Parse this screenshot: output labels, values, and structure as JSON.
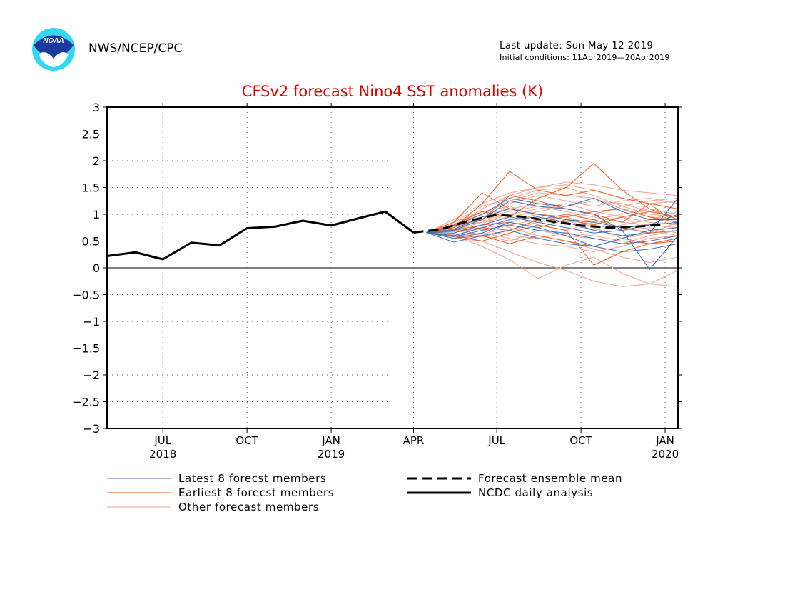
{
  "header": {
    "agency": "NWS/NCEP/CPC",
    "last_update": "Last update: Sun May 12 2019",
    "initial_conditions": "Initial conditions: 11Apr2019—20Apr2019",
    "logo_text": "NOAA"
  },
  "colors": {
    "title": "#e00000",
    "latest": "#3a6fb4",
    "earliest": "#f05a1e",
    "other": "#e8a692",
    "analysis": "#000000",
    "mean": "#000000"
  },
  "chart_data": {
    "type": "line",
    "title": "CFSv2 forecast Nino4 SST anomalies (K)",
    "xlabel": "",
    "ylabel": "",
    "ylim": [
      -3,
      3
    ],
    "xlim": [
      "2018-05-01",
      "2020-01-15"
    ],
    "yticks": [
      3,
      2.5,
      2,
      1.5,
      1,
      0.5,
      0,
      -0.5,
      -1,
      -1.5,
      -2,
      -2.5,
      -3
    ],
    "ytick_labels": [
      "3",
      "2.5",
      "2",
      "1.5",
      "1",
      "0.5",
      "0",
      "−0.5",
      "−1",
      "−1.5",
      "−2",
      "−2.5",
      "−3"
    ],
    "xticks": [
      {
        "date": "2018-07-01",
        "label": "JUL",
        "year": "2018"
      },
      {
        "date": "2018-10-01",
        "label": "OCT",
        "year": ""
      },
      {
        "date": "2019-01-01",
        "label": "JAN",
        "year": "2019"
      },
      {
        "date": "2019-04-01",
        "label": "APR",
        "year": ""
      },
      {
        "date": "2019-07-01",
        "label": "JUL",
        "year": ""
      },
      {
        "date": "2019-10-01",
        "label": "OCT",
        "year": ""
      },
      {
        "date": "2020-01-01",
        "label": "JAN",
        "year": "2020"
      }
    ],
    "grid": true,
    "zero_line": true,
    "legend": [
      {
        "label": "Latest 8 forecst members",
        "kind": "latest"
      },
      {
        "label": "Earliest 8 forecst members",
        "kind": "earliest"
      },
      {
        "label": "Other forecast members",
        "kind": "other"
      },
      {
        "label": "Forecast ensemble mean",
        "kind": "mean"
      },
      {
        "label": "NCDC daily analysis",
        "kind": "analysis"
      }
    ],
    "forecast_months": [
      "2019-04-15",
      "2019-05-15",
      "2019-06-15",
      "2019-07-15",
      "2019-08-15",
      "2019-09-15",
      "2019-10-15",
      "2019-11-15",
      "2019-12-15",
      "2020-01-15"
    ],
    "series": [
      {
        "name": "NCDC daily analysis",
        "kind": "analysis",
        "x": [
          "2018-05-01",
          "2018-06-01",
          "2018-07-01",
          "2018-08-01",
          "2018-09-01",
          "2018-10-01",
          "2018-11-01",
          "2018-12-01",
          "2019-01-01",
          "2019-02-01",
          "2019-03-01",
          "2019-04-01"
        ],
        "y": [
          0.22,
          0.29,
          0.16,
          0.47,
          0.42,
          0.74,
          0.77,
          0.88,
          0.79,
          0.93,
          1.05,
          0.66
        ]
      },
      {
        "name": "Forecast ensemble mean",
        "kind": "mean",
        "x": [
          "2019-04-01",
          "2019-05-01",
          "2019-06-01",
          "2019-07-01",
          "2019-08-01",
          "2019-09-01",
          "2019-10-01",
          "2019-11-01",
          "2019-12-01",
          "2020-01-01"
        ],
        "y": [
          0.66,
          0.72,
          0.88,
          0.99,
          0.95,
          0.86,
          0.79,
          0.75,
          0.77,
          0.81
        ]
      }
    ],
    "members": [
      {
        "kind": "other",
        "y": [
          0.66,
          0.78,
          1.1,
          1.35,
          1.5,
          1.55,
          1.45,
          1.3,
          1.2,
          1.25
        ]
      },
      {
        "kind": "other",
        "y": [
          0.66,
          0.9,
          1.2,
          1.4,
          1.5,
          1.6,
          1.55,
          1.45,
          1.4,
          1.35
        ]
      },
      {
        "kind": "other",
        "y": [
          0.66,
          0.6,
          0.4,
          0.15,
          -0.2,
          0.05,
          0.2,
          -0.1,
          -0.3,
          -0.35
        ]
      },
      {
        "kind": "other",
        "y": [
          0.66,
          0.55,
          0.5,
          0.3,
          0.1,
          -0.05,
          -0.25,
          -0.35,
          -0.3,
          -0.05
        ]
      },
      {
        "kind": "other",
        "y": [
          0.66,
          0.7,
          0.85,
          1.0,
          1.1,
          1.2,
          1.05,
          0.95,
          0.85,
          0.8
        ]
      },
      {
        "kind": "other",
        "y": [
          0.66,
          0.75,
          0.6,
          0.5,
          0.7,
          0.6,
          0.55,
          0.45,
          0.6,
          0.7
        ]
      },
      {
        "kind": "other",
        "y": [
          0.66,
          0.8,
          0.9,
          0.75,
          0.6,
          0.5,
          0.35,
          0.2,
          0.1,
          0.2
        ]
      },
      {
        "kind": "other",
        "y": [
          0.66,
          0.85,
          1.05,
          1.15,
          0.95,
          0.85,
          0.9,
          1.0,
          1.1,
          1.0
        ]
      },
      {
        "kind": "other",
        "y": [
          0.66,
          0.65,
          0.8,
          1.2,
          1.35,
          1.25,
          1.15,
          1.25,
          1.3,
          1.2
        ]
      },
      {
        "kind": "other",
        "y": [
          0.66,
          0.7,
          0.75,
          0.8,
          0.9,
          0.95,
          0.8,
          0.7,
          0.75,
          0.65
        ]
      },
      {
        "kind": "other",
        "y": [
          0.66,
          0.6,
          0.65,
          0.55,
          0.45,
          0.4,
          0.3,
          0.4,
          0.55,
          0.6
        ]
      },
      {
        "kind": "other",
        "y": [
          0.66,
          0.8,
          1.0,
          1.25,
          1.4,
          1.35,
          1.3,
          1.1,
          0.95,
          0.9
        ]
      },
      {
        "kind": "other",
        "y": [
          0.66,
          0.75,
          0.95,
          1.05,
          1.15,
          1.05,
          0.95,
          0.85,
          0.8,
          0.75
        ]
      },
      {
        "kind": "other",
        "y": [
          0.66,
          0.62,
          0.58,
          0.7,
          0.85,
          0.95,
          0.75,
          0.55,
          0.65,
          0.85
        ]
      },
      {
        "kind": "other",
        "y": [
          0.66,
          0.85,
          1.15,
          1.3,
          1.45,
          1.5,
          1.35,
          1.15,
          1.0,
          0.95
        ]
      },
      {
        "kind": "other",
        "y": [
          0.66,
          0.7,
          0.6,
          0.85,
          1.0,
          0.9,
          0.7,
          0.8,
          0.9,
          1.05
        ]
      },
      {
        "kind": "other",
        "y": [
          0.66,
          0.72,
          0.9,
          1.0,
          0.8,
          0.7,
          0.85,
          0.95,
          0.7,
          0.6
        ]
      },
      {
        "kind": "other",
        "y": [
          0.66,
          0.78,
          0.85,
          0.95,
          1.05,
          1.15,
          1.25,
          1.2,
          1.05,
          0.95
        ]
      },
      {
        "kind": "other",
        "y": [
          0.66,
          0.68,
          0.72,
          0.6,
          0.55,
          0.65,
          0.6,
          0.5,
          0.45,
          0.55
        ]
      },
      {
        "kind": "other",
        "y": [
          0.66,
          0.82,
          1.0,
          1.1,
          1.2,
          1.1,
          1.0,
          1.15,
          1.25,
          1.3
        ]
      },
      {
        "kind": "latest",
        "y": [
          0.66,
          0.48,
          0.6,
          0.7,
          0.55,
          0.45,
          0.4,
          0.3,
          0.35,
          0.45
        ]
      },
      {
        "kind": "latest",
        "y": [
          0.66,
          0.72,
          0.95,
          1.1,
          1.0,
          0.9,
          0.85,
          0.75,
          0.8,
          0.85
        ]
      },
      {
        "kind": "latest",
        "y": [
          0.66,
          0.78,
          1.0,
          1.3,
          1.2,
          1.15,
          1.3,
          1.05,
          0.9,
          0.9
        ]
      },
      {
        "kind": "latest",
        "y": [
          0.66,
          0.7,
          0.9,
          1.25,
          1.15,
          1.1,
          1.0,
          0.7,
          -0.03,
          0.6
        ]
      },
      {
        "kind": "latest",
        "y": [
          0.66,
          0.55,
          0.65,
          0.85,
          0.75,
          0.6,
          0.4,
          0.55,
          0.7,
          0.75
        ]
      },
      {
        "kind": "latest",
        "y": [
          0.66,
          0.6,
          0.75,
          0.9,
          0.95,
          0.85,
          0.7,
          0.6,
          0.65,
          1.3
        ]
      },
      {
        "kind": "latest",
        "y": [
          0.66,
          0.65,
          0.8,
          0.95,
          0.85,
          0.75,
          0.65,
          0.7,
          0.8,
          1.0
        ]
      },
      {
        "kind": "latest",
        "y": [
          0.66,
          0.58,
          0.7,
          0.8,
          0.7,
          0.65,
          0.55,
          0.45,
          0.5,
          0.6
        ]
      },
      {
        "kind": "earliest",
        "y": [
          0.66,
          0.75,
          1.2,
          1.8,
          1.45,
          1.35,
          1.45,
          1.3,
          1.2,
          1.1
        ]
      },
      {
        "kind": "earliest",
        "y": [
          0.66,
          0.8,
          1.05,
          0.95,
          1.3,
          1.5,
          1.95,
          1.45,
          1.1,
          0.9
        ]
      },
      {
        "kind": "earliest",
        "y": [
          0.66,
          0.55,
          0.6,
          0.45,
          0.6,
          0.5,
          0.4,
          0.55,
          0.45,
          0.5
        ]
      },
      {
        "kind": "earliest",
        "y": [
          0.66,
          0.85,
          1.4,
          1.1,
          1.0,
          0.95,
          1.05,
          1.1,
          0.95,
          0.85
        ]
      },
      {
        "kind": "earliest",
        "y": [
          0.66,
          0.7,
          0.8,
          0.85,
          0.75,
          0.9,
          0.8,
          0.95,
          1.05,
          0.95
        ]
      },
      {
        "kind": "earliest",
        "y": [
          0.66,
          0.6,
          0.5,
          0.65,
          0.8,
          0.7,
          0.05,
          0.3,
          0.45,
          0.55
        ]
      },
      {
        "kind": "earliest",
        "y": [
          0.66,
          0.78,
          0.9,
          1.35,
          1.25,
          1.1,
          1.0,
          0.85,
          1.2,
          0.8
        ]
      },
      {
        "kind": "earliest",
        "y": [
          0.66,
          0.68,
          0.75,
          0.7,
          0.9,
          1.0,
          0.9,
          0.75,
          0.65,
          0.7
        ]
      }
    ]
  }
}
